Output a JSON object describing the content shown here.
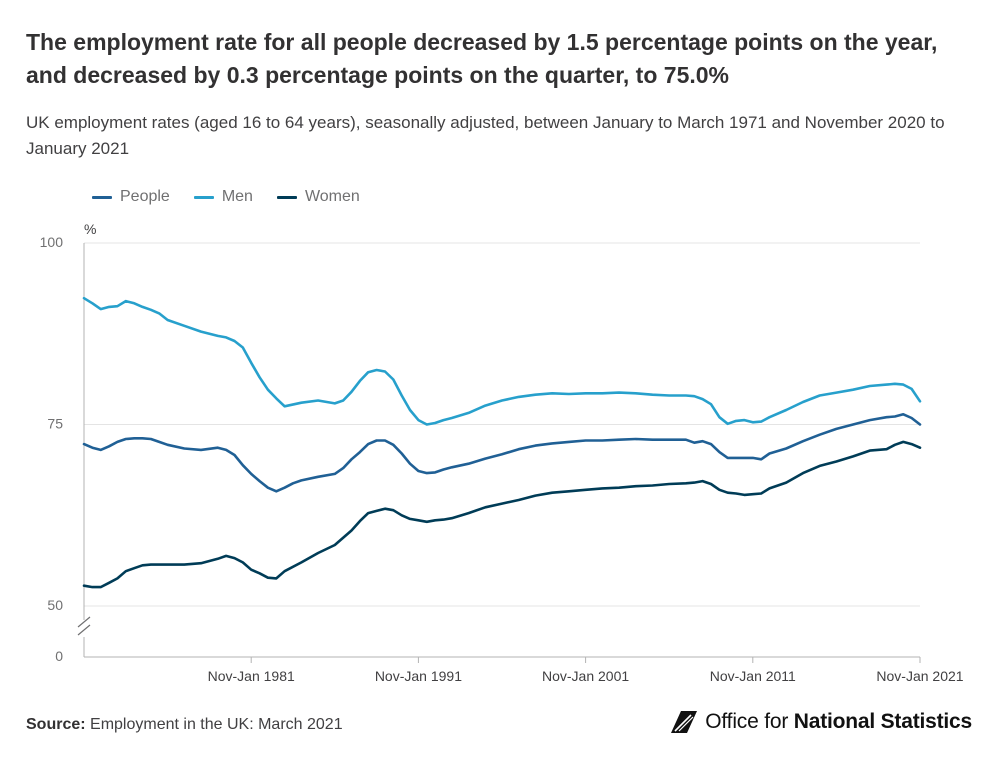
{
  "title": "The employment rate for all people decreased by 1.5 percentage points on the year, and decreased by 0.3 percentage points on the quarter, to 75.0%",
  "subtitle": "UK employment rates (aged 16 to 64 years), seasonally adjusted, between January to March 1971 and November 2020 to January 2021",
  "source_label": "Source:",
  "source_text": "Employment in the UK: March 2021",
  "logo": {
    "prefix": "Office for",
    "bold": "National Statistics",
    "icon": "ons-logo-icon"
  },
  "colors": {
    "people": "#206095",
    "men": "#27a0cc",
    "women": "#003c57",
    "axis": "#cccccc",
    "text": "#707071"
  },
  "chart_data": {
    "type": "line",
    "ylabel": "%",
    "ylim": [
      0,
      100
    ],
    "y_ticks": [
      {
        "value": 0,
        "label": "0"
      },
      {
        "value": 50,
        "label": "50"
      },
      {
        "value": 75,
        "label": "75"
      },
      {
        "value": 100,
        "label": "100"
      }
    ],
    "axis_break": true,
    "x_start": 1971.0,
    "x_end": 2021.0,
    "x_ticks": [
      {
        "value": 1981,
        "label": "Nov-Jan 1981"
      },
      {
        "value": 1991,
        "label": "Nov-Jan 1991"
      },
      {
        "value": 2001,
        "label": "Nov-Jan 2001"
      },
      {
        "value": 2011,
        "label": "Nov-Jan 2011"
      },
      {
        "value": 2021,
        "label": "Nov-Jan 2021"
      }
    ],
    "series": [
      {
        "name": "People",
        "key": "people",
        "x": [
          1971.0,
          1971.5,
          1972.0,
          1972.5,
          1973.0,
          1973.5,
          1974.0,
          1974.5,
          1975.0,
          1975.5,
          1976.0,
          1977.0,
          1978.0,
          1979.0,
          1979.5,
          1980.0,
          1980.5,
          1981.0,
          1981.5,
          1982.0,
          1982.5,
          1983.0,
          1983.5,
          1984.0,
          1985.0,
          1986.0,
          1986.5,
          1987.0,
          1987.5,
          1988.0,
          1988.5,
          1989.0,
          1989.5,
          1990.0,
          1990.5,
          1991.0,
          1991.5,
          1992.0,
          1992.5,
          1993.0,
          1994.0,
          1995.0,
          1996.0,
          1997.0,
          1998.0,
          1999.0,
          2000.0,
          2001.0,
          2002.0,
          2003.0,
          2004.0,
          2005.0,
          2006.0,
          2007.0,
          2007.5,
          2008.0,
          2008.5,
          2009.0,
          2009.5,
          2010.0,
          2010.5,
          2011.0,
          2011.5,
          2012.0,
          2013.0,
          2014.0,
          2015.0,
          2016.0,
          2017.0,
          2018.0,
          2019.0,
          2019.5,
          2020.0,
          2020.5,
          2021.0
        ],
        "y": [
          72.3,
          71.8,
          71.5,
          72.0,
          72.6,
          73.0,
          73.1,
          73.1,
          73.0,
          72.6,
          72.2,
          71.7,
          71.5,
          71.8,
          71.5,
          70.8,
          69.4,
          68.2,
          67.2,
          66.3,
          65.8,
          66.3,
          66.9,
          67.3,
          67.8,
          68.2,
          69.0,
          70.2,
          71.2,
          72.3,
          72.8,
          72.8,
          72.2,
          71.0,
          69.6,
          68.6,
          68.3,
          68.4,
          68.8,
          69.1,
          69.6,
          70.3,
          70.9,
          71.6,
          72.1,
          72.4,
          72.6,
          72.8,
          72.8,
          72.9,
          73.0,
          72.9,
          72.9,
          72.9,
          72.5,
          72.7,
          72.3,
          71.2,
          70.4,
          70.4,
          70.4,
          70.4,
          70.2,
          71.0,
          71.7,
          72.7,
          73.6,
          74.4,
          75.0,
          75.6,
          76.0,
          76.1,
          76.4,
          75.9,
          75.0
        ]
      },
      {
        "name": "Men",
        "key": "men",
        "x": [
          1971.0,
          1971.5,
          1972.0,
          1972.5,
          1973.0,
          1973.5,
          1974.0,
          1974.5,
          1975.0,
          1975.5,
          1976.0,
          1977.0,
          1978.0,
          1979.0,
          1979.5,
          1980.0,
          1980.5,
          1981.0,
          1981.5,
          1982.0,
          1982.5,
          1983.0,
          1984.0,
          1985.0,
          1986.0,
          1986.5,
          1987.0,
          1987.5,
          1988.0,
          1988.5,
          1989.0,
          1989.5,
          1990.0,
          1990.5,
          1991.0,
          1991.5,
          1992.0,
          1992.5,
          1993.0,
          1994.0,
          1995.0,
          1996.0,
          1997.0,
          1998.0,
          1999.0,
          2000.0,
          2001.0,
          2002.0,
          2003.0,
          2004.0,
          2005.0,
          2006.0,
          2007.0,
          2007.5,
          2008.0,
          2008.5,
          2009.0,
          2009.5,
          2010.0,
          2010.5,
          2011.0,
          2011.5,
          2012.0,
          2013.0,
          2014.0,
          2015.0,
          2016.0,
          2017.0,
          2018.0,
          2019.0,
          2019.5,
          2020.0,
          2020.5,
          2021.0
        ],
        "y": [
          92.4,
          91.7,
          90.9,
          91.2,
          91.3,
          92.0,
          91.7,
          91.2,
          90.8,
          90.3,
          89.4,
          88.6,
          87.8,
          87.2,
          87.0,
          86.5,
          85.6,
          83.5,
          81.5,
          79.8,
          78.6,
          77.5,
          78.0,
          78.3,
          77.9,
          78.3,
          79.5,
          81.0,
          82.2,
          82.5,
          82.3,
          81.2,
          79.0,
          77.0,
          75.6,
          75.0,
          75.2,
          75.6,
          75.9,
          76.6,
          77.6,
          78.3,
          78.8,
          79.1,
          79.3,
          79.2,
          79.3,
          79.3,
          79.4,
          79.3,
          79.1,
          79.0,
          79.0,
          78.9,
          78.5,
          77.8,
          76.0,
          75.1,
          75.5,
          75.6,
          75.3,
          75.4,
          76.0,
          77.0,
          78.1,
          79.0,
          79.4,
          79.8,
          80.3,
          80.5,
          80.6,
          80.5,
          79.9,
          78.2
        ]
      },
      {
        "name": "Women",
        "key": "women",
        "x": [
          1971.0,
          1971.5,
          1972.0,
          1972.5,
          1973.0,
          1973.5,
          1974.0,
          1974.5,
          1975.0,
          1975.5,
          1976.0,
          1977.0,
          1978.0,
          1979.0,
          1979.5,
          1980.0,
          1980.5,
          1981.0,
          1981.5,
          1982.0,
          1982.5,
          1983.0,
          1984.0,
          1985.0,
          1986.0,
          1987.0,
          1987.5,
          1988.0,
          1988.5,
          1989.0,
          1989.5,
          1990.0,
          1990.5,
          1991.0,
          1991.5,
          1992.0,
          1992.5,
          1993.0,
          1994.0,
          1995.0,
          1996.0,
          1997.0,
          1998.0,
          1999.0,
          2000.0,
          2001.0,
          2002.0,
          2003.0,
          2004.0,
          2005.0,
          2006.0,
          2007.0,
          2007.5,
          2008.0,
          2008.5,
          2009.0,
          2009.5,
          2010.0,
          2010.5,
          2011.0,
          2011.5,
          2012.0,
          2013.0,
          2014.0,
          2015.0,
          2016.0,
          2017.0,
          2018.0,
          2019.0,
          2019.5,
          2020.0,
          2020.5,
          2021.0
        ],
        "y": [
          52.8,
          52.6,
          52.6,
          53.2,
          53.8,
          54.8,
          55.2,
          55.6,
          55.7,
          55.7,
          55.7,
          55.7,
          55.9,
          56.5,
          56.9,
          56.6,
          56.0,
          55.0,
          54.5,
          53.9,
          53.8,
          54.8,
          56.0,
          57.3,
          58.4,
          60.4,
          61.7,
          62.8,
          63.1,
          63.4,
          63.2,
          62.5,
          62.0,
          61.8,
          61.6,
          61.8,
          61.9,
          62.1,
          62.8,
          63.6,
          64.1,
          64.6,
          65.2,
          65.6,
          65.8,
          66.0,
          66.2,
          66.3,
          66.5,
          66.6,
          66.8,
          66.9,
          67.0,
          67.2,
          66.8,
          66.0,
          65.6,
          65.5,
          65.3,
          65.4,
          65.5,
          66.2,
          67.0,
          68.3,
          69.3,
          69.9,
          70.6,
          71.4,
          71.6,
          72.2,
          72.6,
          72.3,
          71.8
        ]
      }
    ]
  }
}
